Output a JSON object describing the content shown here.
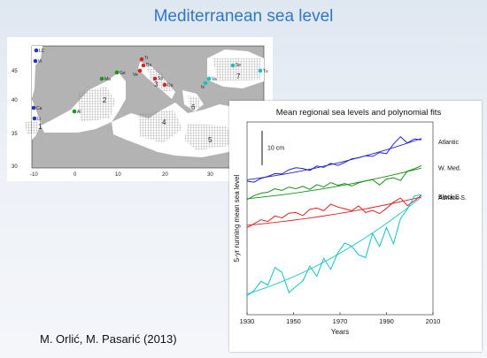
{
  "slide": {
    "title": "Mediterranean sea level",
    "credit": "M. Orlić, M. Pasarić (2013)"
  },
  "map": {
    "y_ticks": [
      "45",
      "40",
      "35",
      "30"
    ],
    "x_ticks": [
      "-10",
      "0",
      "10",
      "20",
      "30"
    ],
    "region_numbers": [
      "1",
      "2",
      "3",
      "4",
      "5",
      "6",
      "7"
    ],
    "station_labels": [
      "LC",
      "Vi",
      "Ca",
      "Li",
      "Al",
      "Ge",
      "Ma",
      "Tr",
      "Ba",
      "Ve",
      "Sp",
      "Du",
      "Is",
      "Va",
      "Se",
      "Tu"
    ]
  },
  "chart_data": {
    "type": "line",
    "title": "Mean regional sea levels and polynomial fits",
    "xlabel": "Years",
    "ylabel": "5-yr running mean sea level",
    "scale_bar": "10 cm",
    "x_ticks": [
      1930,
      1950,
      1970,
      1990,
      2010
    ],
    "xlim": [
      1930,
      2010
    ],
    "grid": false,
    "legend": "none",
    "series": [
      {
        "name": "Atlantic",
        "color": "#2222cc",
        "x": [
          1930,
          1933,
          1936,
          1939,
          1942,
          1945,
          1948,
          1951,
          1954,
          1957,
          1960,
          1963,
          1966,
          1969,
          1972,
          1975,
          1978,
          1981,
          1984,
          1987,
          1990,
          1993,
          1996,
          1999,
          2002,
          2005
        ],
        "y": [
          0.8,
          0.5,
          1.6,
          2.2,
          3.0,
          2.9,
          4.1,
          4.7,
          4.5,
          3.9,
          5.2,
          4.8,
          6.0,
          5.4,
          6.2,
          7.3,
          7.6,
          8.2,
          8.0,
          9.1,
          8.8,
          11.6,
          13.7,
          11.9,
          13.1,
          12.8
        ],
        "fit": [
          1.2,
          13.2
        ]
      },
      {
        "name": "W. Med.",
        "color": "#159015",
        "x": [
          1930,
          1933,
          1936,
          1939,
          1942,
          1945,
          1948,
          1951,
          1954,
          1957,
          1960,
          1963,
          1966,
          1969,
          1972,
          1975,
          1978,
          1981,
          1984,
          1987,
          1990,
          1993,
          1996,
          1999,
          2002,
          2005
        ],
        "y": [
          -4.6,
          -3.4,
          -2.7,
          -2.4,
          -1.4,
          -1.9,
          -0.9,
          -1.4,
          -0.7,
          -1.6,
          -0.2,
          -0.9,
          0.4,
          -0.4,
          0.1,
          -0.6,
          0.3,
          0.9,
          1.2,
          -0.3,
          1.4,
          1.8,
          1.0,
          3.7,
          4.4,
          5.3
        ],
        "fit": [
          -4.3,
          4.6
        ]
      },
      {
        "name": "Adriatic S.",
        "color": "#dd2222",
        "x": [
          1930,
          1933,
          1936,
          1939,
          1942,
          1945,
          1948,
          1951,
          1954,
          1957,
          1960,
          1963,
          1966,
          1969,
          1972,
          1975,
          1978,
          1981,
          1984,
          1987,
          1990,
          1993,
          1996,
          1999,
          2002,
          2005
        ],
        "y": [
          -12.7,
          -11.6,
          -10.4,
          -10.9,
          -9.3,
          -9.9,
          -8.5,
          -8.3,
          -9.2,
          -7.4,
          -7.0,
          -7.8,
          -5.9,
          -6.7,
          -7.2,
          -7.8,
          -6.4,
          -8.3,
          -7.7,
          -8.6,
          -7.1,
          -5.3,
          -4.1,
          -6.3,
          -4.9,
          -3.3
        ],
        "fit": [
          -12.0,
          -3.8
        ]
      },
      {
        "name": "Black S.",
        "color": "#11c2c2",
        "x": [
          1930,
          1933,
          1936,
          1939,
          1942,
          1945,
          1948,
          1951,
          1954,
          1957,
          1960,
          1963,
          1966,
          1969,
          1972,
          1975,
          1978,
          1981,
          1984,
          1987,
          1990,
          1993,
          1996,
          1999,
          2002,
          2005
        ],
        "y": [
          -32.5,
          -31.0,
          -28.3,
          -29.4,
          -24.3,
          -25.7,
          -31.6,
          -29.8,
          -28.2,
          -23.9,
          -26.8,
          -21.6,
          -24.8,
          -20.1,
          -17.2,
          -18.1,
          -20.6,
          -21.4,
          -14.4,
          -18.2,
          -12.7,
          -17.4,
          -10.1,
          -7.3,
          -3.5,
          -3.1
        ],
        "fit": [
          -32.0,
          -3.8
        ]
      }
    ]
  }
}
